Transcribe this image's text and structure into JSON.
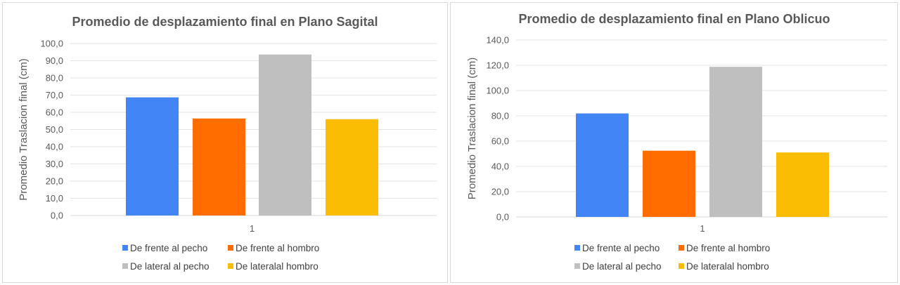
{
  "chart_data": [
    {
      "type": "bar",
      "title": "Promedio de desplazamiento final en Plano Sagital",
      "ylabel": "Promedio Traslacion final (cm)",
      "xlabel": "",
      "categories": [
        "1"
      ],
      "ylim": [
        0,
        100
      ],
      "ytick_step": 10,
      "ytick_labels": [
        "0,0",
        "10,0",
        "20,0",
        "30,0",
        "40,0",
        "50,0",
        "60,0",
        "70,0",
        "80,0",
        "90,0",
        "100,0"
      ],
      "grid": true,
      "legend_position": "bottom",
      "series": [
        {
          "name": "De frente al pecho",
          "values": [
            68.7
          ],
          "color": "#4285f4"
        },
        {
          "name": "De frente al hombro",
          "values": [
            56.4
          ],
          "color": "#ff6d01"
        },
        {
          "name": "De lateral al pecho",
          "values": [
            93.6
          ],
          "color": "#bfbfbf"
        },
        {
          "name": "De lateralal hombro",
          "values": [
            56.0
          ],
          "color": "#fbbc04"
        }
      ]
    },
    {
      "type": "bar",
      "title": "Promedio de desplazamiento final en Plano Oblicuo",
      "ylabel": "Promedio Traslacion final (cm)",
      "xlabel": "",
      "categories": [
        "1"
      ],
      "ylim": [
        0,
        140
      ],
      "ytick_step": 20,
      "ytick_labels": [
        "0,0",
        "20,0",
        "40,0",
        "60,0",
        "80,0",
        "100,0",
        "120,0",
        "140,0"
      ],
      "grid": true,
      "legend_position": "bottom",
      "series": [
        {
          "name": "De frente al pecho",
          "values": [
            81.9
          ],
          "color": "#4285f4"
        },
        {
          "name": "De frente al hombro",
          "values": [
            52.4
          ],
          "color": "#ff6d01"
        },
        {
          "name": "De lateral al pecho",
          "values": [
            118.8
          ],
          "color": "#bfbfbf"
        },
        {
          "name": "De lateralal hombro",
          "values": [
            51.0
          ],
          "color": "#fbbc04"
        }
      ]
    }
  ]
}
